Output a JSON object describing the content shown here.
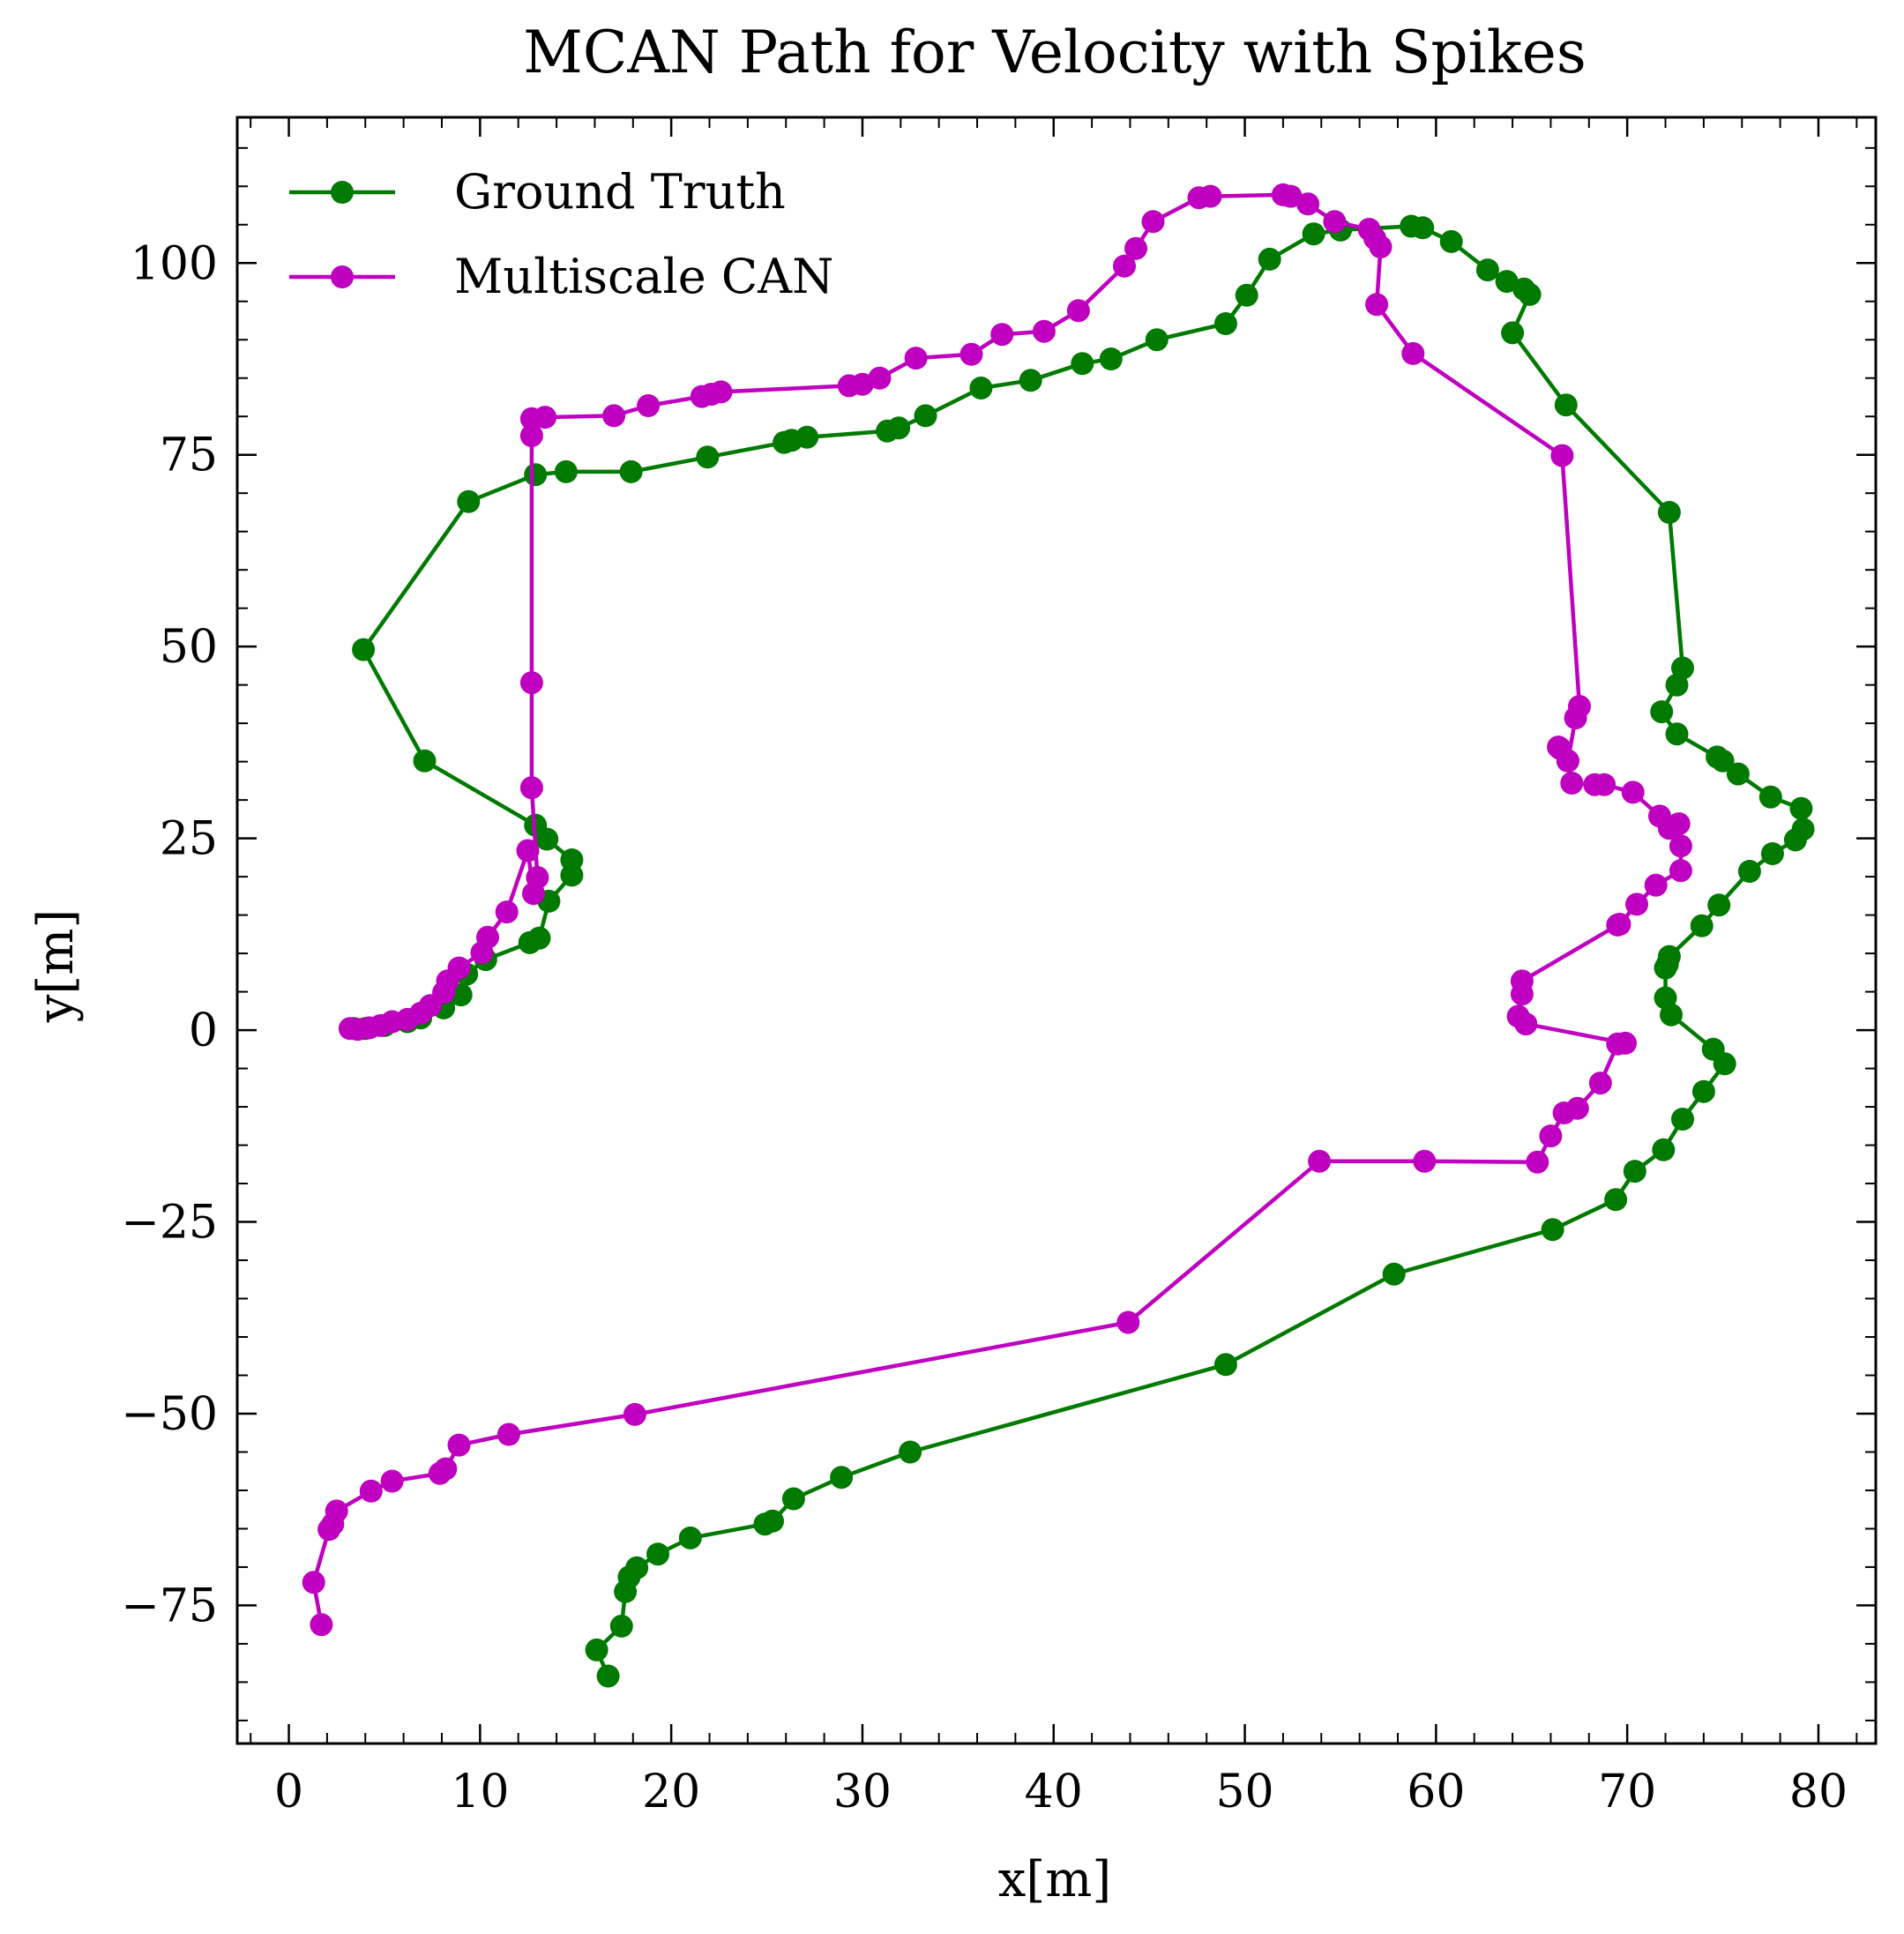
{
  "chart_data": {
    "type": "line",
    "title": "MCAN Path for Velocity with Spikes",
    "xlabel": "x[m]",
    "ylabel": "y[m]",
    "xlim": [
      -2.7,
      83.0
    ],
    "ylim": [
      -93.0,
      119.0
    ],
    "xticks": [
      0,
      10,
      20,
      30,
      40,
      50,
      60,
      70,
      80
    ],
    "yticks": [
      -75,
      -50,
      -25,
      0,
      25,
      50,
      75,
      100
    ],
    "xtick_labels": [
      "0",
      "10",
      "20",
      "30",
      "40",
      "50",
      "60",
      "70",
      "80"
    ],
    "ytick_labels": [
      "−75",
      "−50",
      "−25",
      "0",
      "25",
      "50",
      "75",
      "100"
    ],
    "grid": false,
    "legend_position": "top-left",
    "markers": true,
    "series": [
      {
        "name": "Ground Truth",
        "color": "#007a00",
        "x": [
          3.4,
          4.0,
          5.0,
          6.2,
          6.9,
          8.1,
          9.0,
          9.3,
          10.3,
          12.6,
          13.1,
          13.6,
          14.8,
          14.8,
          13.5,
          12.9,
          7.1,
          3.9,
          9.4,
          12.9,
          14.5,
          17.9,
          21.9,
          25.9,
          26.3,
          27.1,
          31.3,
          31.9,
          33.3,
          36.2,
          38.8,
          41.5,
          43.0,
          45.4,
          49.0,
          50.1,
          51.3,
          53.6,
          55.0,
          58.7,
          59.3,
          60.8,
          62.7,
          63.7,
          64.6,
          64.9,
          64.0,
          66.8,
          72.2,
          72.9,
          72.6,
          71.8,
          72.6,
          74.7,
          75.0,
          75.8,
          77.5,
          79.1,
          79.2,
          78.8,
          77.6,
          76.4,
          74.8,
          73.9,
          72.2,
          72.1,
          72.0,
          72.0,
          72.3,
          74.5,
          75.1,
          74.0,
          72.9,
          71.9,
          70.4,
          69.4,
          66.1,
          57.8,
          49.0,
          32.5,
          28.9,
          26.4,
          25.3,
          24.9,
          21.0,
          19.3,
          18.2,
          17.8,
          17.6,
          17.4,
          16.1,
          16.7
        ],
        "y": [
          0.2,
          0.2,
          0.6,
          1.1,
          1.6,
          2.9,
          4.6,
          7.3,
          9.2,
          11.4,
          12.0,
          16.8,
          20.2,
          22.2,
          24.9,
          26.7,
          35.1,
          49.6,
          68.9,
          72.4,
          72.8,
          72.8,
          74.7,
          76.6,
          76.9,
          77.3,
          78.1,
          78.5,
          80.1,
          83.7,
          84.7,
          86.9,
          87.5,
          90.0,
          92.1,
          95.8,
          100.5,
          103.8,
          104.3,
          104.8,
          104.6,
          102.8,
          99.1,
          97.6,
          96.6,
          95.9,
          90.9,
          81.5,
          67.5,
          47.2,
          45.0,
          41.5,
          38.6,
          35.6,
          35.1,
          33.4,
          30.4,
          28.9,
          26.2,
          24.8,
          23.0,
          20.7,
          16.3,
          13.6,
          9.6,
          8.6,
          8.1,
          4.2,
          2.0,
          -2.5,
          -4.4,
          -8.0,
          -11.6,
          -15.6,
          -18.4,
          -22.1,
          -26.0,
          -31.8,
          -43.6,
          -55.0,
          -58.3,
          -61.1,
          -64.0,
          -64.4,
          -66.2,
          -68.3,
          -70.1,
          -71.3,
          -73.2,
          -77.7,
          -80.8,
          -84.2
        ]
      },
      {
        "name": "Multiscale CAN",
        "color": "#c000c0",
        "x": [
          3.2,
          3.6,
          4.2,
          4.8,
          5.4,
          6.2,
          6.9,
          7.4,
          8.1,
          8.3,
          8.9,
          10.1,
          10.4,
          11.4,
          12.5,
          12.8,
          13.0,
          12.7,
          12.7,
          12.7,
          12.7,
          13.4,
          17.0,
          18.8,
          21.6,
          22.1,
          22.6,
          29.3,
          30.0,
          30.9,
          32.8,
          35.7,
          37.3,
          39.5,
          41.3,
          43.7,
          44.3,
          45.2,
          47.6,
          48.2,
          52.0,
          52.4,
          53.3,
          54.7,
          56.5,
          56.8,
          57.1,
          56.9,
          58.8,
          66.6,
          67.5,
          67.3,
          66.9,
          66.5,
          66.4,
          66.9,
          67.1,
          68.3,
          68.8,
          70.3,
          71.7,
          72.2,
          72.7,
          72.8,
          72.8,
          71.5,
          70.5,
          69.6,
          69.5,
          64.5,
          64.5,
          64.3,
          64.7,
          69.9,
          69.5,
          68.6,
          67.4,
          66.7,
          66.0,
          65.3,
          59.4,
          53.9,
          43.9,
          18.1,
          11.5,
          8.9,
          8.2,
          7.9,
          5.4,
          4.3,
          2.5,
          2.3,
          2.1,
          1.3,
          1.7
        ],
        "y": [
          0.2,
          0.1,
          0.3,
          0.6,
          1.1,
          1.4,
          2.2,
          3.2,
          4.9,
          6.4,
          8.1,
          10.1,
          12.1,
          15.4,
          23.4,
          17.8,
          19.9,
          31.6,
          45.3,
          77.5,
          79.7,
          79.9,
          80.1,
          81.4,
          82.6,
          82.9,
          83.2,
          84.0,
          84.2,
          85.0,
          87.6,
          88.1,
          90.7,
          91.1,
          93.8,
          99.6,
          101.9,
          105.4,
          108.5,
          108.7,
          108.9,
          108.7,
          107.7,
          105.4,
          104.4,
          103.2,
          102.1,
          94.6,
          88.2,
          74.9,
          42.2,
          40.7,
          35.1,
          36.7,
          36.9,
          35.1,
          32.2,
          32.0,
          32.0,
          31.0,
          27.9,
          26.3,
          26.9,
          24.0,
          20.8,
          18.9,
          16.4,
          13.8,
          13.7,
          6.4,
          4.7,
          1.8,
          0.8,
          -1.7,
          -1.8,
          -6.9,
          -10.2,
          -10.8,
          -13.8,
          -17.2,
          -17.1,
          -17.1,
          -38.1,
          -50.1,
          -52.7,
          -54.1,
          -57.2,
          -57.8,
          -58.8,
          -60.1,
          -62.7,
          -64.4,
          -65.1,
          -72.0,
          -77.5
        ]
      }
    ]
  }
}
